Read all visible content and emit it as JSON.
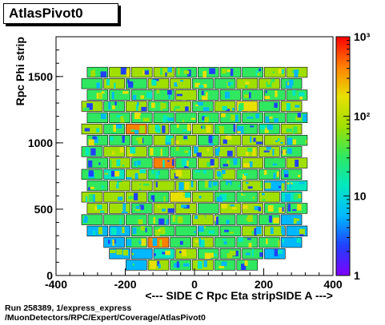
{
  "chart_data": {
    "type": "heatmap",
    "title": "AtlasPivot0",
    "xlabel": "<--- SIDE C      Rpc Eta  stripSIDE A --->",
    "ylabel": "Rpc Phi  strip",
    "xlim": [
      -400,
      400
    ],
    "ylim": [
      0,
      1800
    ],
    "x_ticks": [
      "-400",
      "-200",
      "0",
      "200",
      "400"
    ],
    "y_ticks": [
      "0",
      "500",
      "1000",
      "1500"
    ],
    "z_scale": "log",
    "zlim": [
      1,
      1000
    ],
    "z_ticks": [
      "1",
      "10",
      "10²",
      "10³"
    ],
    "grid": false,
    "legend": "color bar on right",
    "cells": [
      [
        0,
        0,
        1,
        2,
        2,
        2,
        2,
        2,
        0,
        0
      ],
      [
        0,
        1,
        1,
        1,
        2,
        2,
        2,
        2,
        1,
        0
      ],
      [
        0,
        1,
        2,
        3,
        2,
        2,
        2,
        2,
        2,
        1
      ],
      [
        1,
        1,
        2,
        2,
        2,
        2,
        2,
        2,
        2,
        1
      ],
      [
        2,
        2,
        2,
        2,
        2,
        2,
        2,
        2,
        2,
        1
      ],
      [
        2,
        2,
        2,
        2,
        2,
        2,
        2,
        2,
        2,
        2
      ],
      [
        2,
        2,
        2,
        2,
        3,
        2,
        2,
        2,
        2,
        1
      ],
      [
        2,
        2,
        2,
        2,
        2,
        2,
        2,
        2,
        1,
        1
      ],
      [
        2,
        1,
        2,
        2,
        2,
        2,
        2,
        2,
        2,
        2
      ],
      [
        2,
        2,
        2,
        3,
        2,
        2,
        2,
        2,
        2,
        2
      ],
      [
        2,
        2,
        2,
        2,
        2,
        2,
        2,
        2,
        2,
        2
      ],
      [
        2,
        2,
        2,
        2,
        2,
        2,
        2,
        2,
        2,
        2
      ],
      [
        2,
        2,
        3,
        2,
        2,
        2,
        2,
        2,
        2,
        2
      ],
      [
        2,
        2,
        2,
        2,
        2,
        2,
        2,
        2,
        2,
        2
      ],
      [
        2,
        2,
        2,
        2,
        2,
        2,
        2,
        3,
        2,
        2
      ],
      [
        2,
        2,
        2,
        2,
        2,
        2,
        2,
        2,
        2,
        2
      ],
      [
        2,
        2,
        2,
        2,
        2,
        2,
        2,
        2,
        2,
        2
      ],
      [
        2,
        2,
        2,
        2,
        2,
        2,
        2,
        2,
        2,
        2
      ]
    ]
  },
  "footer": {
    "line1": "Run 258389, 1/express_express",
    "line2": "/MuonDetectors/RPC/Expert/Coverage/AtlasPivot0"
  },
  "colors": {
    "frame": "#000000",
    "background": "#ffffff",
    "palette": [
      "#7f00ff",
      "#2040ff",
      "#00b8ff",
      "#00e8c0",
      "#30e860",
      "#a0e000",
      "#e8e000",
      "#ff8000",
      "#ff0000"
    ]
  }
}
